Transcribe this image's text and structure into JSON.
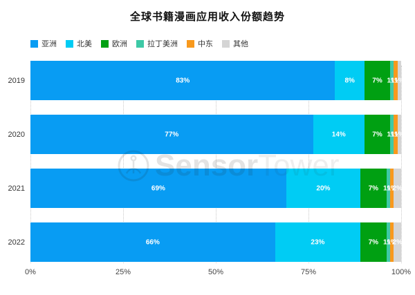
{
  "title": "全球书籍漫画应用收入份额趋势",
  "watermark": {
    "part1": "Sensor",
    "part2": "Tower",
    "logo": "sensortower-circle-tower-icon"
  },
  "chart_data": {
    "type": "bar",
    "orientation": "horizontal-stacked",
    "title": "全球书籍漫画应用收入份额趋势",
    "categories": [
      "2019",
      "2020",
      "2021",
      "2022"
    ],
    "series": [
      {
        "name": "亚洲",
        "color": "#089CF3",
        "values": [
          83,
          77,
          69,
          66
        ]
      },
      {
        "name": "北美",
        "color": "#00CCF4",
        "values": [
          8,
          14,
          20,
          23
        ]
      },
      {
        "name": "欧洲",
        "color": "#00A012",
        "values": [
          7,
          7,
          7,
          7
        ]
      },
      {
        "name": "拉丁美洲",
        "color": "#3EC9A6",
        "values": [
          1,
          1,
          1,
          1
        ]
      },
      {
        "name": "中东",
        "color": "#F8991D",
        "values": [
          1,
          1,
          1,
          1
        ]
      },
      {
        "name": "其他",
        "color": "#D5D5D5",
        "values": [
          1,
          1,
          2,
          2
        ]
      }
    ],
    "value_unit": "%",
    "xlim": [
      0,
      100
    ],
    "x_tick_labels": [
      "0%",
      "25%",
      "50%",
      "75%",
      "100%"
    ],
    "grid": "dotted-vertical",
    "legend_position": "top-left",
    "bar_label_color": "#ffffff"
  }
}
